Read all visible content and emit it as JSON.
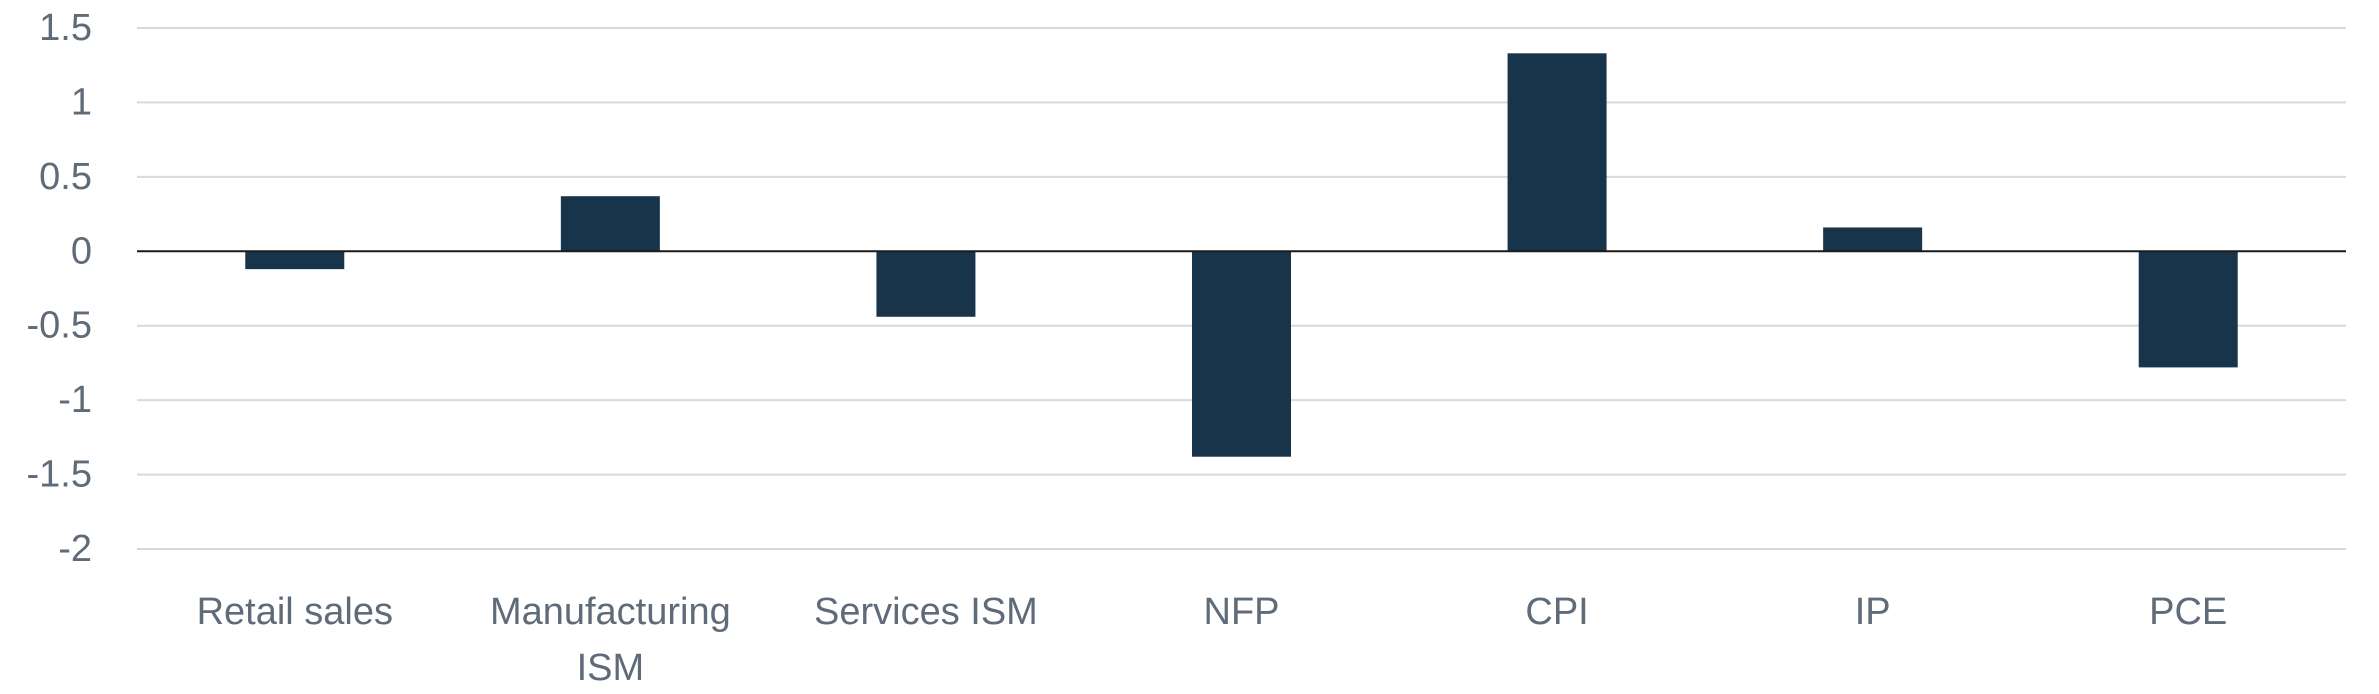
{
  "chart_data": {
    "type": "bar",
    "categories": [
      "Retail sales",
      "Manufacturing ISM",
      "Services ISM",
      "NFP",
      "CPI",
      "IP",
      "PCE"
    ],
    "category_lines": [
      [
        "Retail sales"
      ],
      [
        "Manufacturing",
        "ISM"
      ],
      [
        "Services ISM"
      ],
      [
        "NFP"
      ],
      [
        "CPI"
      ],
      [
        "IP"
      ],
      [
        "PCE"
      ]
    ],
    "values": [
      -0.12,
      0.37,
      -0.44,
      -1.38,
      1.33,
      0.16,
      -0.78
    ],
    "yticks": [
      "1.5",
      "1",
      "0.5",
      "0",
      "-0.5",
      "-1",
      "-1.5",
      "-2"
    ],
    "ytick_values": [
      1.5,
      1,
      0.5,
      0,
      -0.5,
      -1,
      -1.5,
      -2
    ],
    "ylim": [
      -2,
      1.5
    ],
    "grid": true,
    "title": "",
    "xlabel": "",
    "ylabel": "",
    "colors": {
      "bar": "#17344b",
      "grid": "#d9d9d9",
      "zero_line": "#1b1b1b",
      "tick_text": "#5f6b78"
    }
  }
}
